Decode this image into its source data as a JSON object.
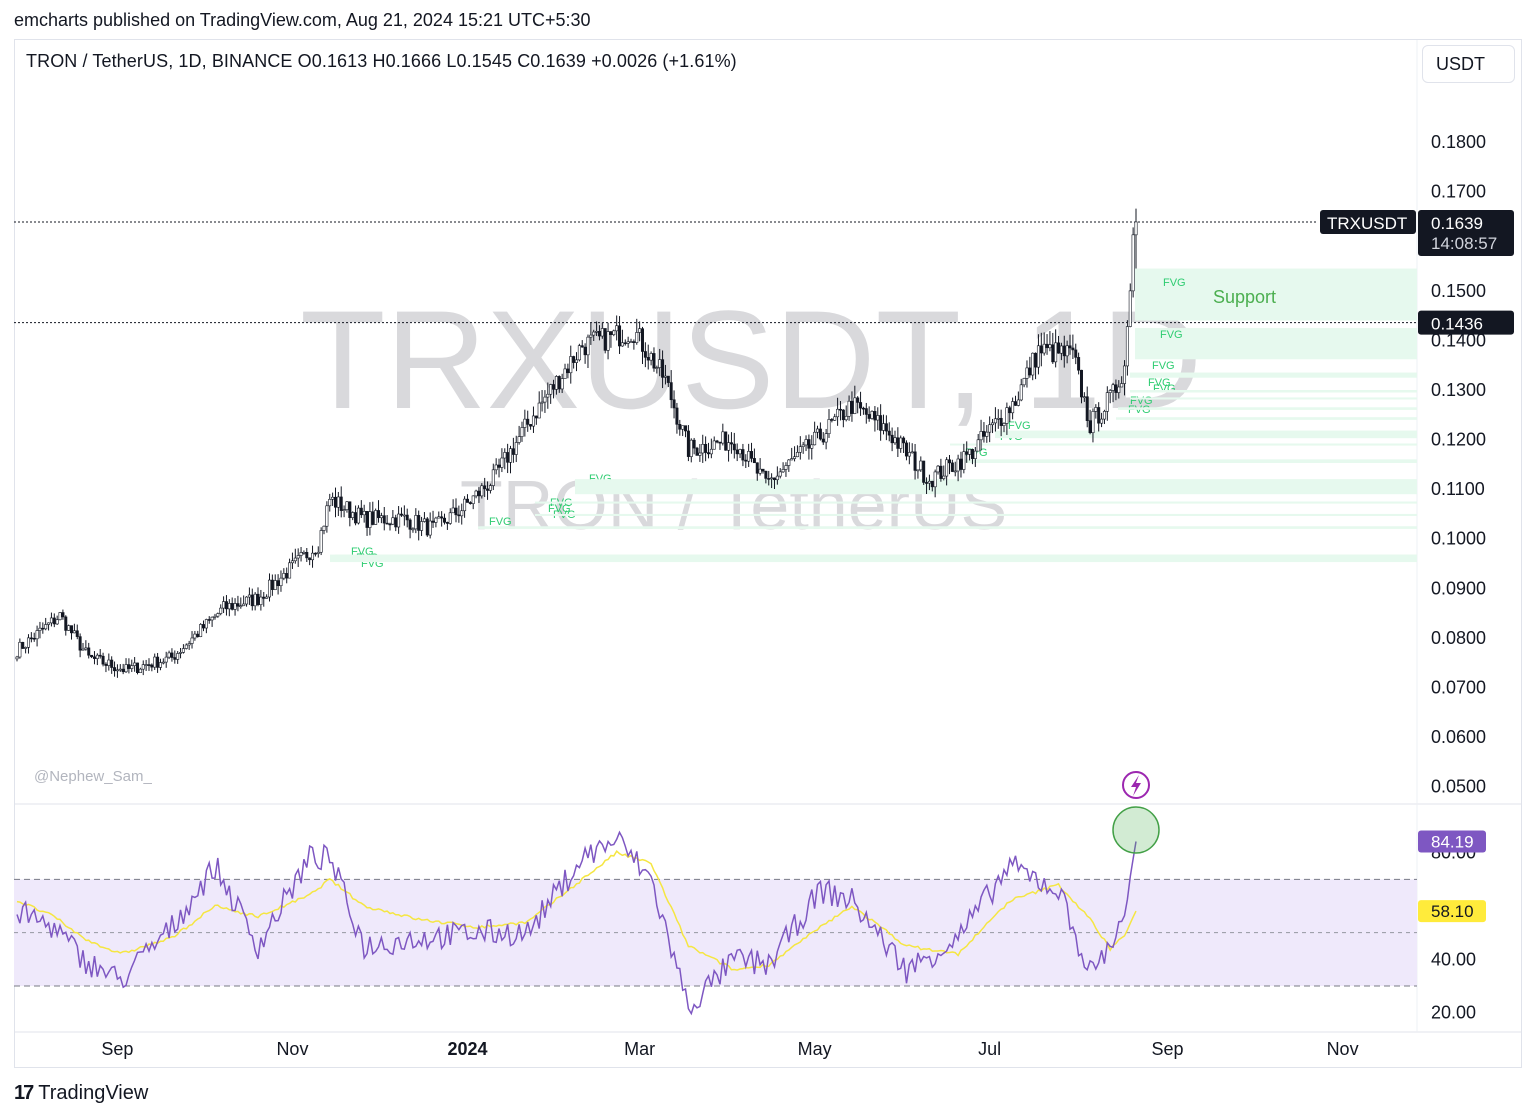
{
  "header": {
    "published": "emcharts published on TradingView.com, Aug 21, 2024 15:21 UTC+5:30",
    "symbol_line": "TRON / TetherUS, 1D, BINANCE  O0.1613  H0.1666  L0.1545  C0.1639  +0.0026 (+1.61%)",
    "currency_button": "USDT"
  },
  "watermark": {
    "main": "TRXUSDT, 1D",
    "sub": "TRON / TetherUS"
  },
  "credit": "@Nephew_Sam_",
  "branding": {
    "logo_text": "TradingView",
    "logo_mark": "17"
  },
  "price_panel": {
    "axis_labels": [
      "0.1800",
      "0.1700",
      "0.1500",
      "0.1300",
      "0.1200",
      "0.1100",
      "0.1000",
      "0.0900",
      "0.0800",
      "0.0700",
      "0.0600",
      "0.0500"
    ],
    "last_price_tag": {
      "symbol": "TRXUSDT",
      "price": "0.1639",
      "countdown": "14:08:57"
    },
    "level_tag": "0.1436",
    "level_tag_hidden_axis": "0.1400",
    "support_label": "Support",
    "fvg_label": "FVG"
  },
  "rsi_panel": {
    "axis_labels": [
      "80.00",
      "40.00",
      "20.00"
    ],
    "rsi_tag": "84.19",
    "ma_tag": "58.10"
  },
  "time_axis": {
    "labels": [
      "Sep",
      "Nov",
      "2024",
      "Mar",
      "May",
      "Jul",
      "Sep",
      "Nov"
    ]
  },
  "colors": {
    "up": "#131722",
    "down": "#131722",
    "fvg_fill": "#e6f9ee",
    "fvg_text": "#2ecc71",
    "support_text": "#4caf50",
    "rsi_line": "#7e57c2",
    "rsi_ma": "#f5e642",
    "rsi_band": "#efe9fb",
    "rsi_tag": "#7e57c2",
    "ma_tag": "#ffeb3b",
    "lightning": "#9c27b0"
  },
  "chart_data": {
    "type": "candlestick",
    "title": "TRON / TetherUS, 1D, BINANCE",
    "timeframe": "1D",
    "ylim": [
      0.0473,
      0.1885
    ],
    "last": {
      "open": 0.1613,
      "high": 0.1666,
      "low": 0.1545,
      "close": 0.1639,
      "change": 0.0026,
      "change_pct": 1.61
    },
    "horizontal_levels": [
      0.1639,
      0.1436
    ],
    "close_anchors": [
      {
        "date": "2023-07-28",
        "close": 0.0775
      },
      {
        "date": "2023-08-12",
        "close": 0.0845
      },
      {
        "date": "2023-08-22",
        "close": 0.076
      },
      {
        "date": "2023-09-04",
        "close": 0.0735
      },
      {
        "date": "2023-09-20",
        "close": 0.076
      },
      {
        "date": "2023-10-08",
        "close": 0.086
      },
      {
        "date": "2023-10-20",
        "close": 0.088
      },
      {
        "date": "2023-11-10",
        "close": 0.099
      },
      {
        "date": "2023-11-14",
        "close": 0.108
      },
      {
        "date": "2023-11-26",
        "close": 0.104
      },
      {
        "date": "2023-12-10",
        "close": 0.104
      },
      {
        "date": "2023-12-20",
        "close": 0.102
      },
      {
        "date": "2023-12-30",
        "close": 0.106
      },
      {
        "date": "2024-01-10",
        "close": 0.112
      },
      {
        "date": "2024-01-24",
        "close": 0.125
      },
      {
        "date": "2024-02-10",
        "close": 0.139
      },
      {
        "date": "2024-02-28",
        "close": 0.142
      },
      {
        "date": "2024-03-10",
        "close": 0.132
      },
      {
        "date": "2024-03-18",
        "close": 0.118
      },
      {
        "date": "2024-04-03",
        "close": 0.12
      },
      {
        "date": "2024-04-14",
        "close": 0.111
      },
      {
        "date": "2024-04-30",
        "close": 0.119
      },
      {
        "date": "2024-05-14",
        "close": 0.127
      },
      {
        "date": "2024-05-26",
        "close": 0.122
      },
      {
        "date": "2024-06-10",
        "close": 0.112
      },
      {
        "date": "2024-06-24",
        "close": 0.117
      },
      {
        "date": "2024-07-10",
        "close": 0.128
      },
      {
        "date": "2024-07-18",
        "close": 0.138
      },
      {
        "date": "2024-07-30",
        "close": 0.137
      },
      {
        "date": "2024-08-05",
        "close": 0.123
      },
      {
        "date": "2024-08-13",
        "close": 0.129
      },
      {
        "date": "2024-08-17",
        "close": 0.135
      },
      {
        "date": "2024-08-19",
        "close": 0.15
      },
      {
        "date": "2024-08-20",
        "close": 0.1613
      },
      {
        "date": "2024-08-21",
        "close": 0.1639
      }
    ],
    "fvg_zones": [
      {
        "top": 0.1545,
        "bottom": 0.144,
        "labels": 1
      },
      {
        "top": 0.1425,
        "bottom": 0.1362,
        "labels": 1
      },
      {
        "top": 0.1335,
        "bottom": 0.1325,
        "labels": 1
      },
      {
        "top": 0.13,
        "bottom": 0.1295,
        "labels": 2
      },
      {
        "top": 0.1285,
        "bottom": 0.1282,
        "labels": 0
      },
      {
        "top": 0.1265,
        "bottom": 0.126,
        "labels": 1
      },
      {
        "top": 0.1245,
        "bottom": 0.124,
        "labels": 1
      },
      {
        "top": 0.1218,
        "bottom": 0.1203,
        "labels": 1
      },
      {
        "top": 0.1192,
        "bottom": 0.1188,
        "labels": 1
      },
      {
        "top": 0.116,
        "bottom": 0.1153,
        "labels": 1
      },
      {
        "top": 0.112,
        "bottom": 0.109,
        "labels": 1
      },
      {
        "top": 0.1075,
        "bottom": 0.1071,
        "labels": 0
      },
      {
        "top": 0.105,
        "bottom": 0.1047,
        "labels": 2
      },
      {
        "top": 0.1025,
        "bottom": 0.102,
        "labels": 1
      },
      {
        "top": 0.0968,
        "bottom": 0.0953,
        "labels": 3
      }
    ],
    "rsi": {
      "ylim": [
        13.5,
        97.5
      ],
      "bands": [
        70,
        50,
        30
      ],
      "last": 84.19,
      "ma_last": 58.1,
      "anchors": [
        {
          "date": "2023-07-28",
          "rsi": 58,
          "ma": 62
        },
        {
          "date": "2023-08-10",
          "rsi": 52,
          "ma": 56
        },
        {
          "date": "2023-08-20",
          "rsi": 40,
          "ma": 48
        },
        {
          "date": "2023-09-02",
          "rsi": 32,
          "ma": 42
        },
        {
          "date": "2023-09-20",
          "rsi": 52,
          "ma": 48
        },
        {
          "date": "2023-10-05",
          "rsi": 75,
          "ma": 60
        },
        {
          "date": "2023-10-20",
          "rsi": 45,
          "ma": 56
        },
        {
          "date": "2023-11-07",
          "rsi": 78,
          "ma": 64
        },
        {
          "date": "2023-11-14",
          "rsi": 78,
          "ma": 70
        },
        {
          "date": "2023-11-26",
          "rsi": 45,
          "ma": 60
        },
        {
          "date": "2023-12-15",
          "rsi": 48,
          "ma": 55
        },
        {
          "date": "2024-01-05",
          "rsi": 50,
          "ma": 52
        },
        {
          "date": "2024-01-22",
          "rsi": 50,
          "ma": 54
        },
        {
          "date": "2024-02-10",
          "rsi": 78,
          "ma": 70
        },
        {
          "date": "2024-02-22",
          "rsi": 85,
          "ma": 80
        },
        {
          "date": "2024-03-05",
          "rsi": 70,
          "ma": 76
        },
        {
          "date": "2024-03-18",
          "rsi": 22,
          "ma": 45
        },
        {
          "date": "2024-04-03",
          "rsi": 40,
          "ma": 36
        },
        {
          "date": "2024-04-15",
          "rsi": 38,
          "ma": 38
        },
        {
          "date": "2024-05-03",
          "rsi": 66,
          "ma": 52
        },
        {
          "date": "2024-05-14",
          "rsi": 62,
          "ma": 60
        },
        {
          "date": "2024-06-02",
          "rsi": 36,
          "ma": 45
        },
        {
          "date": "2024-06-20",
          "rsi": 48,
          "ma": 42
        },
        {
          "date": "2024-07-08",
          "rsi": 75,
          "ma": 62
        },
        {
          "date": "2024-07-25",
          "rsi": 66,
          "ma": 68
        },
        {
          "date": "2024-08-05",
          "rsi": 35,
          "ma": 55
        },
        {
          "date": "2024-08-12",
          "rsi": 45,
          "ma": 44
        },
        {
          "date": "2024-08-17",
          "rsi": 58,
          "ma": 49
        },
        {
          "date": "2024-08-21",
          "rsi": 84.19,
          "ma": 58.1
        }
      ]
    }
  }
}
